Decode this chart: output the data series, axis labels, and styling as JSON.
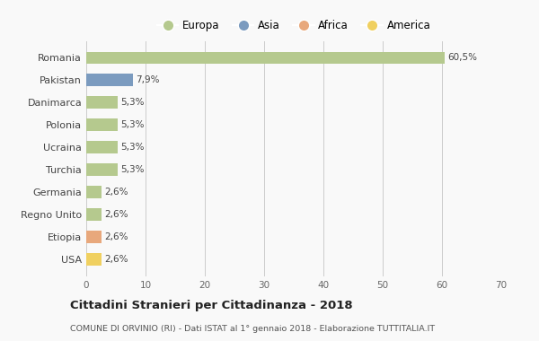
{
  "categories": [
    "Romania",
    "Pakistan",
    "Danimarca",
    "Polonia",
    "Ucraina",
    "Turchia",
    "Germania",
    "Regno Unito",
    "Etiopia",
    "USA"
  ],
  "values": [
    60.5,
    7.9,
    5.3,
    5.3,
    5.3,
    5.3,
    2.6,
    2.6,
    2.6,
    2.6
  ],
  "labels": [
    "60,5%",
    "7,9%",
    "5,3%",
    "5,3%",
    "5,3%",
    "5,3%",
    "2,6%",
    "2,6%",
    "2,6%",
    "2,6%"
  ],
  "colors": [
    "#b5c98e",
    "#7b9bbf",
    "#b5c98e",
    "#b5c98e",
    "#b5c98e",
    "#b5c98e",
    "#b5c98e",
    "#b5c98e",
    "#e8a87c",
    "#f0d060"
  ],
  "legend_labels": [
    "Europa",
    "Asia",
    "Africa",
    "America"
  ],
  "legend_colors": [
    "#b5c98e",
    "#7b9bbf",
    "#e8a87c",
    "#f0d060"
  ],
  "title": "Cittadini Stranieri per Cittadinanza - 2018",
  "subtitle": "COMUNE DI ORVINIO (RI) - Dati ISTAT al 1° gennaio 2018 - Elaborazione TUTTITALIA.IT",
  "xlim": [
    0,
    70
  ],
  "xticks": [
    0,
    10,
    20,
    30,
    40,
    50,
    60,
    70
  ],
  "background_color": "#f9f9f9",
  "grid_color": "#cccccc",
  "bar_height": 0.55
}
